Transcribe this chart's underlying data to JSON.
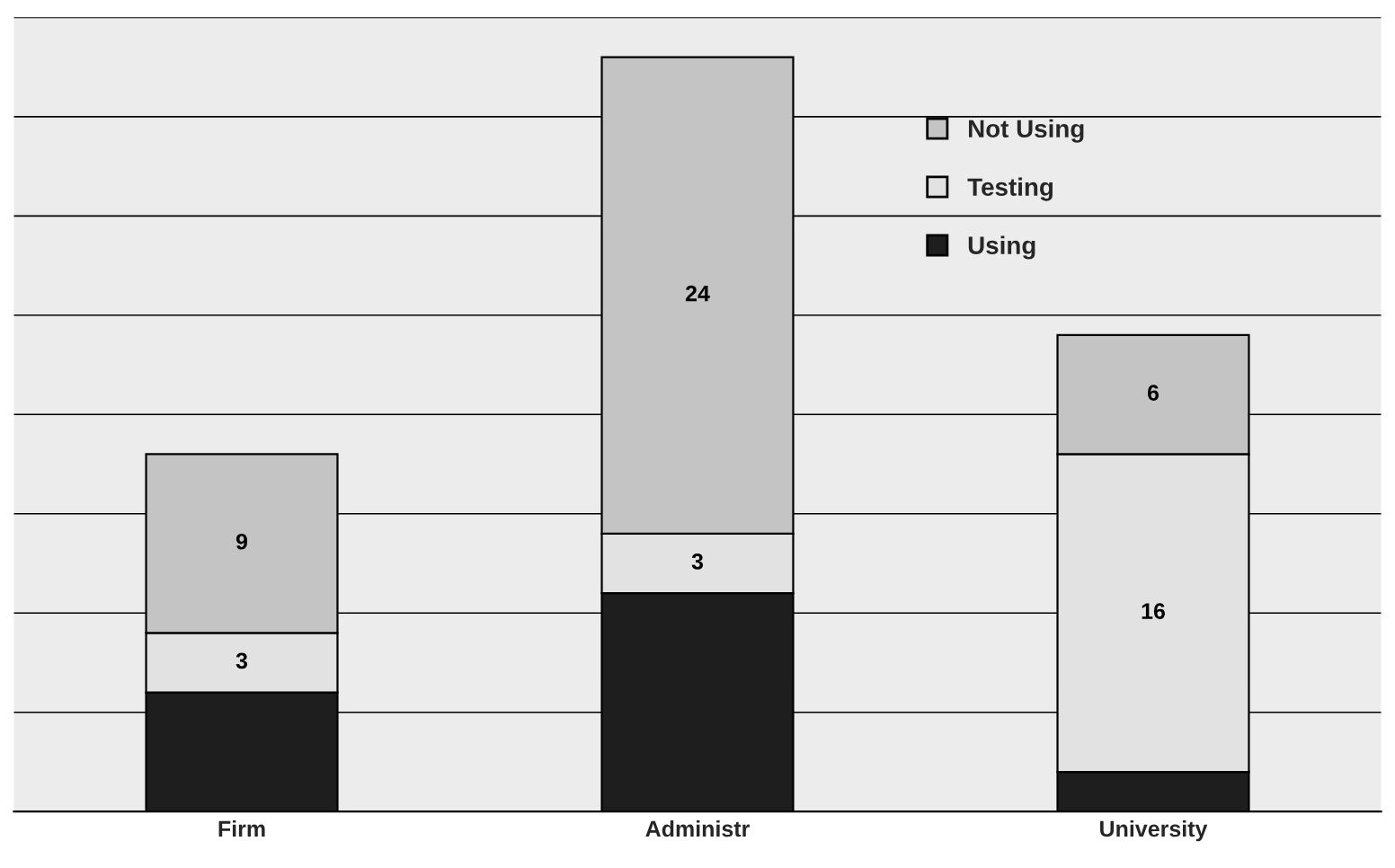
{
  "chart_data": {
    "type": "bar",
    "stacked": true,
    "categories": [
      "Firm",
      "Administr",
      "University"
    ],
    "series": [
      {
        "name": "Using",
        "color": "#1e1e1e",
        "values": [
          6,
          11,
          2
        ],
        "value_labels": [
          null,
          null,
          null
        ]
      },
      {
        "name": "Testing",
        "color": "#e2e2e2",
        "values": [
          3,
          3,
          16
        ],
        "value_labels": [
          "3",
          "3",
          "16"
        ]
      },
      {
        "name": "Not Using",
        "color": "#c4c4c4",
        "values": [
          9,
          24,
          6
        ],
        "value_labels": [
          "9",
          "24",
          "6"
        ]
      }
    ],
    "ylim": [
      0,
      40
    ],
    "yticks": [
      {
        "value": 0,
        "label": null
      },
      {
        "value": 5,
        "label": null
      },
      {
        "value": 10,
        "label": null
      },
      {
        "value": 15,
        "label": null
      },
      {
        "value": 20,
        "label": null
      },
      {
        "value": 25,
        "label": null
      },
      {
        "value": 30,
        "label": null
      },
      {
        "value": 35,
        "label": null
      },
      {
        "value": 40,
        "label": null
      }
    ],
    "tick_labels": "x",
    "grid": "y",
    "legend": "top right",
    "marker": "square"
  }
}
